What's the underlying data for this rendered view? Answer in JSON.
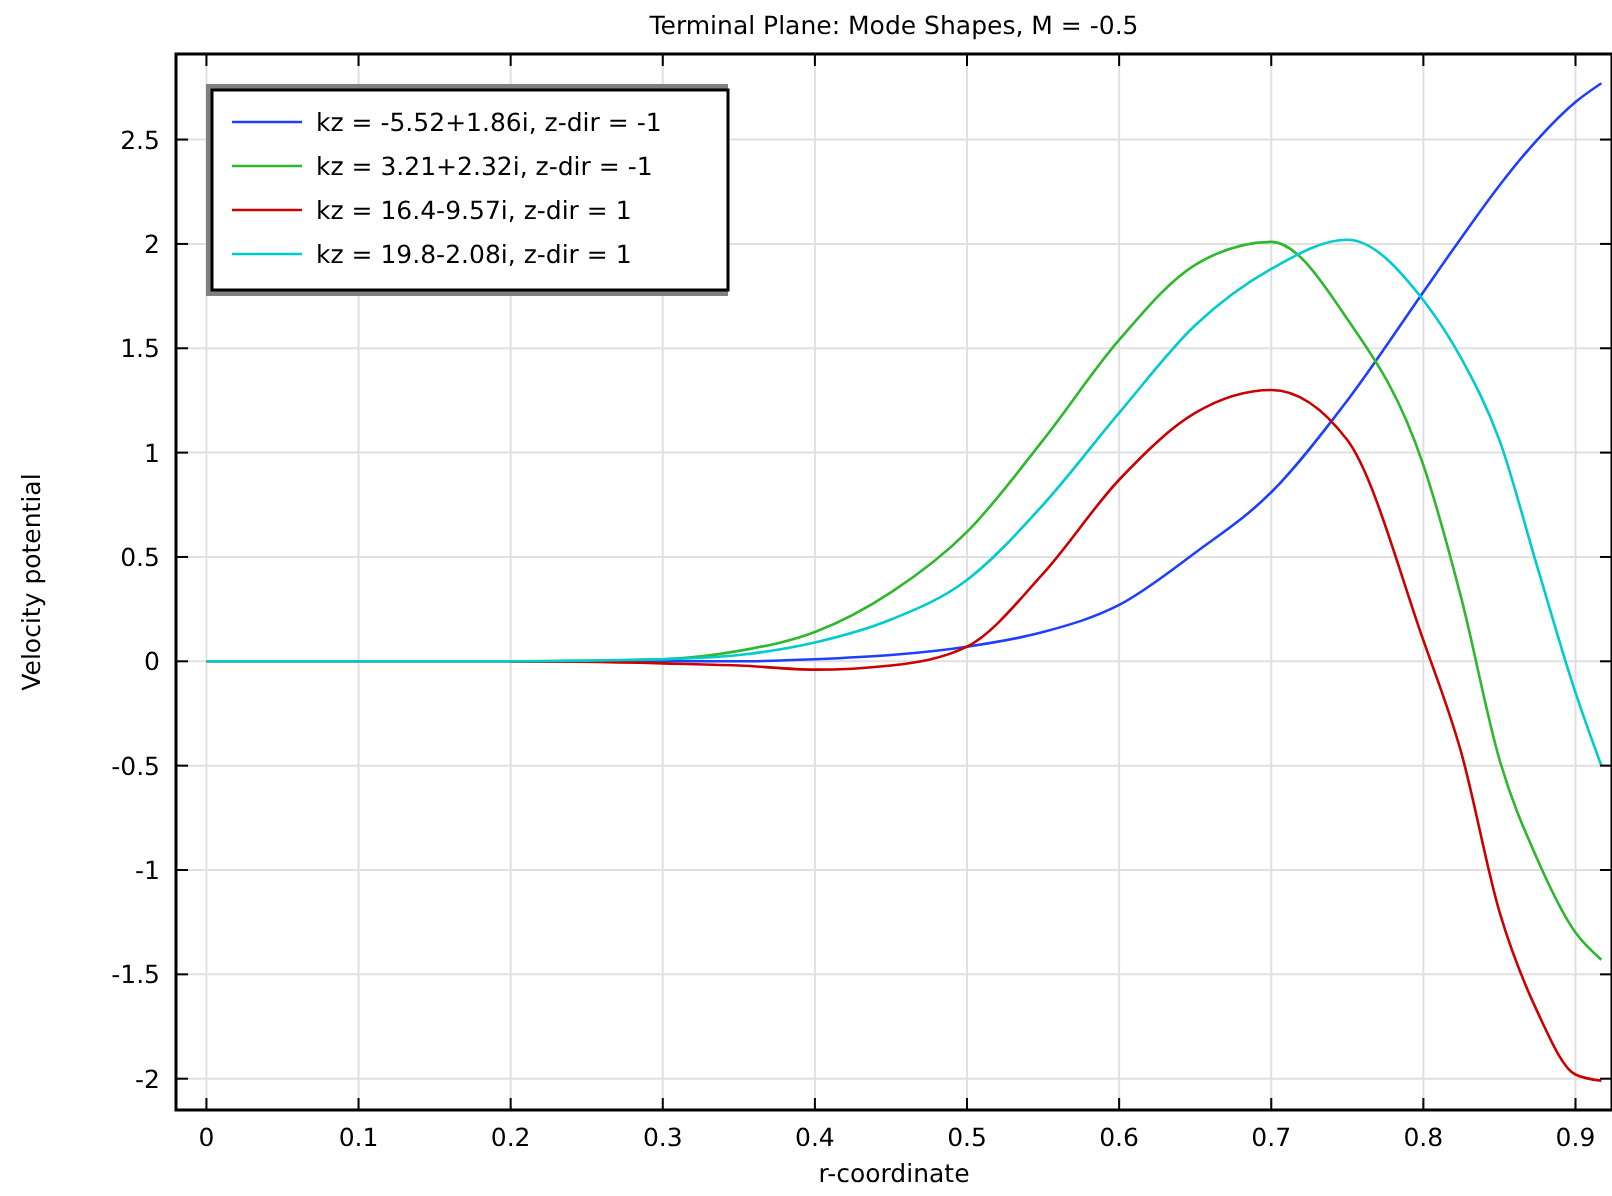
{
  "chart_data": {
    "type": "line",
    "title": "Terminal Plane: Mode Shapes, M = -0.5",
    "xlabel": "r-coordinate",
    "ylabel": "Velocity potential",
    "x": [
      0,
      0.1,
      0.2,
      0.3,
      0.35,
      0.4,
      0.45,
      0.5,
      0.55,
      0.6,
      0.65,
      0.7,
      0.75,
      0.8,
      0.825,
      0.85,
      0.875,
      0.9,
      0.917
    ],
    "series": [
      {
        "name": "kz = -5.52+1.86i, z-dir = -1",
        "color": "#1f3fff",
        "values": [
          null,
          null,
          0,
          0,
          0,
          0.01,
          0.03,
          0.07,
          0.14,
          0.27,
          0.52,
          0.81,
          1.25,
          1.77,
          2.03,
          2.28,
          2.5,
          2.68,
          2.77
        ]
      },
      {
        "name": "kz = 3.21+2.32i, z-dir = -1",
        "color": "#2db82d",
        "values": [
          null,
          null,
          0,
          0.01,
          0.05,
          0.14,
          0.33,
          0.62,
          1.06,
          1.54,
          1.9,
          2.01,
          1.64,
          0.94,
          0.3,
          -0.47,
          -0.95,
          -1.3,
          -1.43
        ]
      },
      {
        "name": "kz = 16.4-9.57i, z-dir = 1",
        "color": "#cc0000",
        "values": [
          0,
          0,
          0,
          -0.01,
          -0.02,
          -0.04,
          -0.02,
          0.07,
          0.42,
          0.87,
          1.19,
          1.3,
          1.06,
          0.1,
          -0.44,
          -1.2,
          -1.68,
          -1.98,
          -2.01
        ]
      },
      {
        "name": "kz = 19.8-2.08i, z-dir = 1",
        "color": "#00cccc",
        "values": [
          0,
          0,
          0,
          0.01,
          0.03,
          0.09,
          0.2,
          0.39,
          0.75,
          1.19,
          1.61,
          1.88,
          2.02,
          1.73,
          1.45,
          1.06,
          0.45,
          -0.15,
          -0.5
        ]
      }
    ],
    "xlim": [
      -0.02,
      0.924
    ],
    "ylim": [
      -2.15,
      2.91
    ],
    "xticks": [
      0,
      0.1,
      0.2,
      0.3,
      0.4,
      0.5,
      0.6,
      0.7,
      0.8,
      0.9
    ],
    "yticks": [
      -2,
      -1.5,
      -1,
      -0.5,
      0,
      0.5,
      1,
      1.5,
      2,
      2.5
    ],
    "grid": true,
    "legend": "top left",
    "line_style": "solid",
    "marker": "none"
  }
}
